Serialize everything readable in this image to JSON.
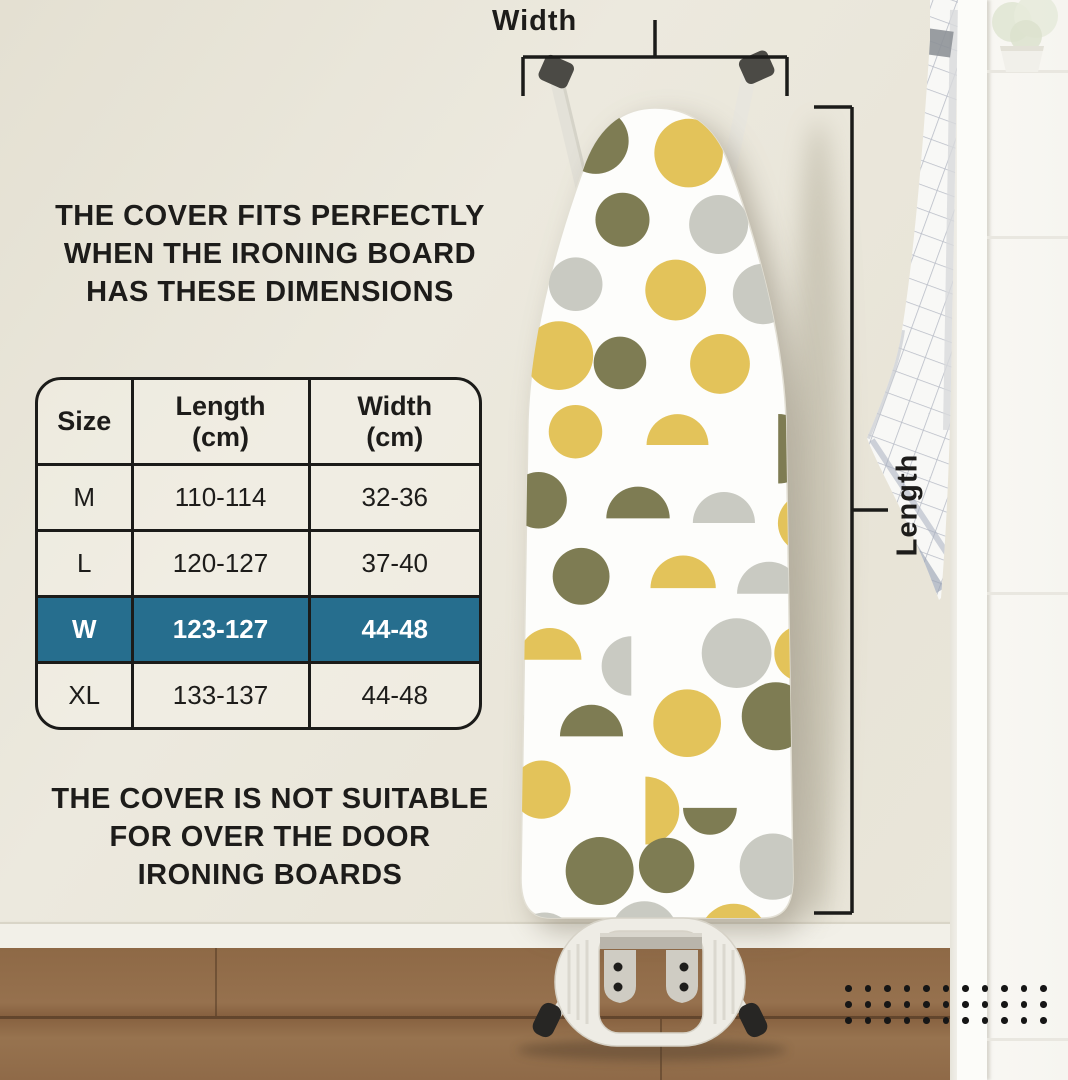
{
  "annotations": {
    "width_label": "Width",
    "length_label": "Length"
  },
  "headline": {
    "lines": [
      "THE COVER FITS PERFECTLY",
      "WHEN THE IRONING BOARD",
      "HAS THESE DIMENSIONS"
    ]
  },
  "footnote": {
    "lines": [
      "THE COVER IS NOT SUITABLE",
      "FOR OVER THE DOOR",
      "IRONING BOARDS"
    ]
  },
  "size_table": {
    "headers": [
      {
        "label": "Size",
        "unit": ""
      },
      {
        "label": "Length",
        "unit": "(cm)"
      },
      {
        "label": "Width",
        "unit": "(cm)"
      }
    ],
    "rows": [
      {
        "size": "M",
        "length": "110-114",
        "width": "32-36",
        "highlighted": false
      },
      {
        "size": "L",
        "length": "120-127",
        "width": "37-40",
        "highlighted": false
      },
      {
        "size": "W",
        "length": "123-127",
        "width": "44-48",
        "highlighted": true
      },
      {
        "size": "XL",
        "length": "133-137",
        "width": "44-48",
        "highlighted": false
      }
    ]
  },
  "colors": {
    "highlight_row": "#266E8E",
    "text": "#1D1C1A",
    "annotation_line": "#1B1B19",
    "pattern": [
      "#E3C35A",
      "#7E7C53",
      "#C9CAC2"
    ],
    "board_cover": "#FDFDFB"
  },
  "decor": {
    "dot_grid": {
      "rows": 3,
      "cols": 11,
      "color": "#161616"
    }
  }
}
